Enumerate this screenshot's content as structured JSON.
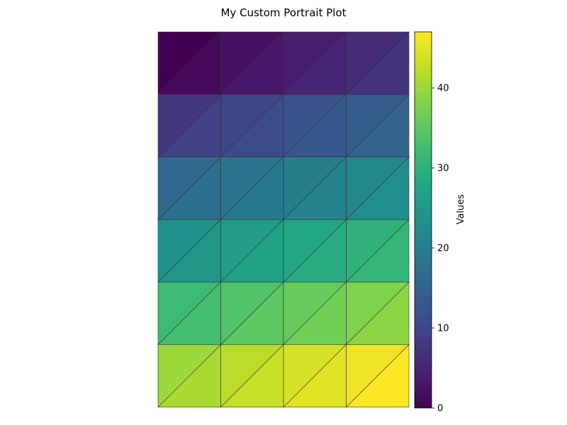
{
  "chart_data": {
    "type": "heatmap",
    "title": "My Custom Portrait Plot",
    "xlabel": "",
    "ylabel": "",
    "grid": false,
    "rows": 6,
    "cols": 4,
    "cell_split": "diagonal",
    "upper_values": [
      [
        0,
        2,
        4,
        6
      ],
      [
        8,
        10,
        12,
        14
      ],
      [
        16,
        18,
        20,
        22
      ],
      [
        24,
        26,
        28,
        30
      ],
      [
        32,
        34,
        36,
        38
      ],
      [
        40,
        42,
        44,
        46
      ]
    ],
    "lower_values": [
      [
        1,
        3,
        5,
        7
      ],
      [
        9,
        11,
        13,
        15
      ],
      [
        17,
        19,
        21,
        23
      ],
      [
        25,
        27,
        29,
        31
      ],
      [
        33,
        35,
        37,
        39
      ],
      [
        41,
        43,
        45,
        47
      ]
    ],
    "colorbar": {
      "label": "Values",
      "colormap": "viridis",
      "range": [
        0,
        47
      ],
      "ticks": [
        0,
        10,
        20,
        30,
        40
      ],
      "tick_labels": [
        "0",
        "10",
        "20",
        "30",
        "40"
      ]
    }
  }
}
